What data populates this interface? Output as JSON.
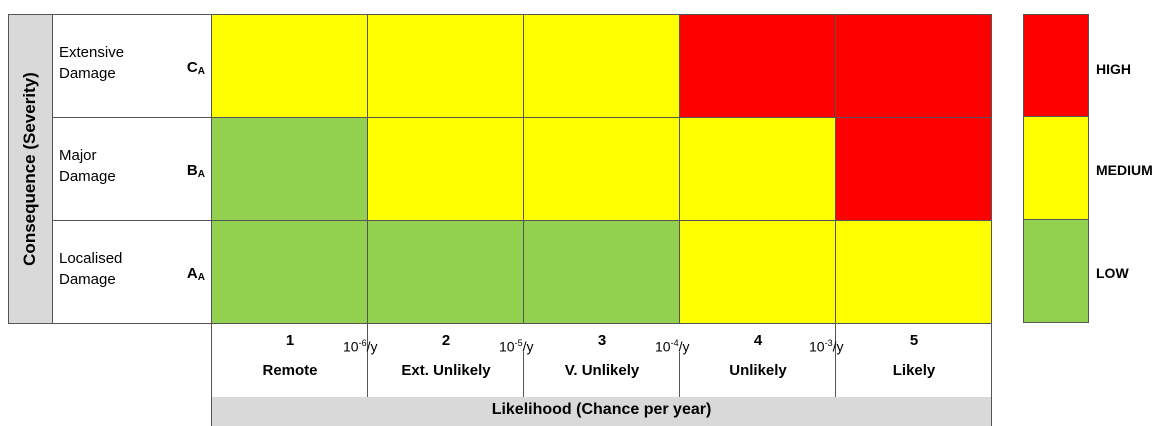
{
  "y_axis_title": "Consequence (Severity)",
  "x_axis_title": "Likelihood (Chance per year)",
  "colors": {
    "high": "#ff0000",
    "medium": "#ffff00",
    "low": "#92d050",
    "axis_bg": "#d9d9d9"
  },
  "severity_rows": [
    {
      "name_line1": "Extensive",
      "name_line2": "Damage",
      "code": "C",
      "sub": "A"
    },
    {
      "name_line1": "Major",
      "name_line2": "Damage",
      "code": "B",
      "sub": "A"
    },
    {
      "name_line1": "Localised",
      "name_line2": "Damage",
      "code": "A",
      "sub": "A"
    }
  ],
  "likelihood": [
    {
      "num": "1",
      "name": "Remote"
    },
    {
      "num": "2",
      "name": "Ext. Unlikely"
    },
    {
      "num": "3",
      "name": "V. Unlikely"
    },
    {
      "num": "4",
      "name": "Unlikely"
    },
    {
      "num": "5",
      "name": "Likely"
    }
  ],
  "thresholds": [
    {
      "base": "10",
      "exp": "-6",
      "unit": "/y"
    },
    {
      "base": "10",
      "exp": "-5",
      "unit": "/y"
    },
    {
      "base": "10",
      "exp": "-4",
      "unit": "/y"
    },
    {
      "base": "10",
      "exp": "-3",
      "unit": "/y"
    }
  ],
  "matrix": [
    [
      "medium",
      "medium",
      "medium",
      "high",
      "high"
    ],
    [
      "low",
      "medium",
      "medium",
      "medium",
      "high"
    ],
    [
      "low",
      "low",
      "low",
      "medium",
      "medium"
    ]
  ],
  "legend": [
    {
      "level": "high",
      "label": "HIGH"
    },
    {
      "level": "medium",
      "label": "MEDIUM"
    },
    {
      "level": "low",
      "label": "LOW"
    }
  ]
}
